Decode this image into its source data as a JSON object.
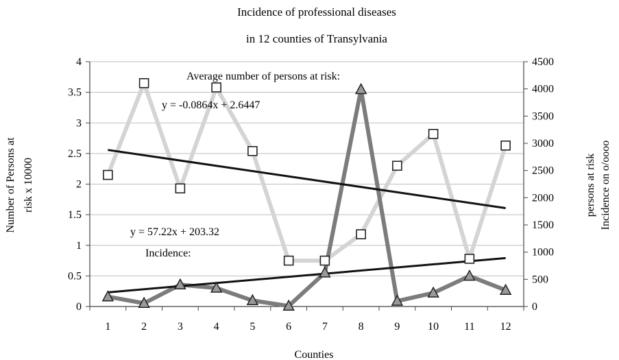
{
  "chart_data": {
    "type": "line",
    "title": "Incidence of professional diseases",
    "subtitle": "in 12 counties of Transylvania",
    "xlabel": "Counties",
    "ylabel_left": [
      "Number of Persons at",
      "risk x 10000"
    ],
    "ylabel_right": [
      "persons at risk",
      "Incidence on o/oooo"
    ],
    "x": [
      1,
      2,
      3,
      4,
      5,
      6,
      7,
      8,
      9,
      10,
      11,
      12
    ],
    "y_left_ticks": [
      "0",
      "0.5",
      "1",
      "1.5",
      "2",
      "2.5",
      "3",
      "3.5",
      "4"
    ],
    "y_right_ticks": [
      "0",
      "500",
      "1000",
      "1500",
      "2000",
      "2500",
      "3000",
      "3500",
      "4000",
      "4500"
    ],
    "ylim_left": [
      0,
      4
    ],
    "ylim_right": [
      0,
      4500
    ],
    "grid": true,
    "series": [
      {
        "axis": "left",
        "marker": "square",
        "color": "#d4d4d4",
        "values": [
          2.15,
          3.65,
          1.93,
          3.58,
          2.54,
          0.75,
          0.75,
          1.18,
          2.3,
          2.82,
          0.78,
          2.63
        ]
      },
      {
        "axis": "right",
        "marker": "triangle",
        "color": "#7c7c7c",
        "values": [
          180,
          60,
          400,
          340,
          110,
          10,
          620,
          3990,
          100,
          250,
          560,
          300
        ]
      }
    ],
    "trendlines": [
      {
        "axis": "left",
        "slope": -0.0864,
        "intercept": 2.6447
      },
      {
        "axis": "right",
        "slope": 57.22,
        "intercept": 203.32
      }
    ],
    "annotations": [
      "Average number of persons at risk:",
      "y = -0.0864x + 2.6447",
      "y = 57.22x + 203.32",
      "Incidence:"
    ]
  }
}
